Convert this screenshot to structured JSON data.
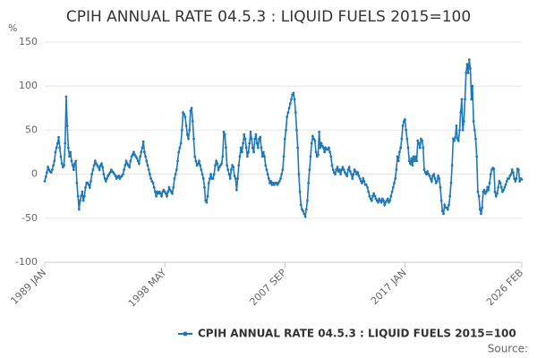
{
  "chart_data": {
    "type": "line",
    "title": "CPIH ANNUAL RATE 04.5.3 : LIQUID FUELS 2015=100",
    "y_label": "%",
    "source": "Source:",
    "categories": [
      "1989 JAN",
      null,
      null,
      null,
      null,
      null,
      null,
      null,
      null,
      null,
      null,
      null,
      null,
      null,
      null,
      null,
      null,
      null,
      null,
      null,
      null,
      null,
      null,
      null,
      null,
      null,
      null,
      null,
      null,
      null,
      null,
      null,
      null,
      null,
      null,
      null,
      null,
      null,
      null,
      null,
      null,
      null,
      null,
      null,
      null,
      null,
      null,
      null,
      null,
      null,
      null,
      null,
      null,
      null,
      null,
      null,
      null,
      null,
      null,
      null,
      null,
      null,
      null,
      null,
      null,
      null,
      null,
      null,
      null,
      null,
      null,
      null,
      null,
      null,
      null,
      null,
      null,
      null,
      null,
      null,
      null,
      null,
      null,
      null,
      null,
      null,
      null,
      null,
      null,
      null,
      null,
      null,
      null,
      null,
      null,
      null,
      null,
      null,
      null,
      null,
      null,
      null,
      null,
      null,
      null,
      null,
      null,
      null,
      null,
      null,
      null,
      null,
      "1998 MAY",
      null,
      null,
      null,
      null,
      null,
      null,
      null,
      null,
      null,
      null,
      null,
      null,
      null,
      null,
      null,
      null,
      null,
      null,
      null,
      null,
      null,
      null,
      null,
      null,
      null,
      null,
      null,
      null,
      null,
      null,
      null,
      null,
      null,
      null,
      null,
      null,
      null,
      null,
      null,
      null,
      null,
      null,
      null,
      null,
      null,
      null,
      null,
      null,
      null,
      null,
      null,
      null,
      null,
      null,
      null,
      null,
      null,
      null,
      null,
      null,
      null,
      null,
      null,
      null,
      null,
      null,
      null,
      null,
      null,
      null,
      null,
      null,
      null,
      null,
      null,
      null,
      null,
      null,
      null,
      null,
      null,
      null,
      null,
      null,
      null,
      null,
      null,
      null,
      null,
      null,
      null,
      null,
      null,
      null,
      null,
      null,
      null,
      null,
      null,
      null,
      null,
      null,
      null,
      null,
      null,
      null,
      null,
      null,
      null,
      null,
      null,
      "2007 SEP",
      null,
      null,
      null,
      null,
      null,
      null,
      null,
      null,
      null,
      null,
      null,
      null,
      null,
      null,
      null,
      null,
      null,
      null,
      null,
      null,
      null,
      null,
      null,
      null,
      null,
      null,
      null,
      null,
      null,
      null,
      null,
      null,
      null,
      null,
      null,
      null,
      null,
      null,
      null,
      null,
      null,
      null,
      null,
      null,
      null,
      null,
      null,
      null,
      null,
      null,
      null,
      null,
      null,
      null,
      null,
      null,
      null,
      null,
      null,
      null,
      null,
      null,
      null,
      null,
      null,
      null,
      null,
      null,
      null,
      null,
      null,
      null,
      null,
      null,
      null,
      null,
      null,
      null,
      null,
      null,
      null,
      null,
      null,
      null,
      null,
      null,
      null,
      null,
      null,
      null,
      null,
      null,
      null,
      null,
      null,
      null,
      null,
      null,
      null,
      null,
      null,
      null,
      null,
      null,
      null,
      null,
      null,
      null,
      null,
      null,
      null,
      "2017 JAN",
      null,
      null,
      null,
      null,
      null,
      null,
      null,
      null,
      null,
      null,
      null,
      null,
      null,
      null,
      null,
      null,
      null,
      null,
      null,
      null,
      null,
      null,
      null,
      null,
      null,
      null,
      null,
      null,
      null,
      null,
      null,
      null,
      null,
      null,
      null,
      null,
      null,
      null,
      null,
      null,
      null,
      null,
      null,
      null,
      null,
      null,
      null,
      null,
      null,
      null,
      null,
      null,
      null,
      null,
      null,
      null,
      null,
      null,
      null,
      null,
      null,
      null,
      null,
      null,
      null,
      null,
      null,
      null,
      null,
      null,
      null,
      null,
      null,
      null,
      null,
      null,
      null,
      null,
      null,
      null,
      null,
      null,
      null,
      null,
      null,
      null,
      null,
      null,
      null,
      null,
      null,
      null,
      null,
      null,
      null,
      null,
      null,
      null,
      null,
      null,
      null,
      null,
      null,
      null,
      null,
      null,
      null,
      null,
      "2026 FEB"
    ],
    "series": [
      {
        "name": "CPIH ANNUAL RATE 04.5.3 : LIQUID FUELS 2015=100",
        "color": "#1f78b8",
        "values": [
          -8,
          -3,
          2,
          8,
          5,
          3,
          2,
          5,
          10,
          15,
          25,
          30,
          35,
          42,
          30,
          20,
          12,
          8,
          10,
          35,
          88,
          55,
          30,
          20,
          25,
          15,
          10,
          5,
          12,
          15,
          -10,
          -25,
          -40,
          -30,
          -25,
          -20,
          -30,
          -25,
          -15,
          -10,
          -10,
          -12,
          -15,
          -8,
          0,
          5,
          10,
          15,
          12,
          10,
          8,
          5,
          10,
          12,
          8,
          0,
          -5,
          -8,
          -5,
          -2,
          0,
          2,
          5,
          3,
          2,
          0,
          -2,
          -5,
          -3,
          -2,
          -5,
          -3,
          -2,
          0,
          5,
          10,
          15,
          12,
          10,
          8,
          15,
          20,
          22,
          25,
          22,
          20,
          18,
          15,
          12,
          20,
          25,
          30,
          37,
          25,
          20,
          15,
          10,
          5,
          0,
          -5,
          -8,
          -10,
          -15,
          -20,
          -25,
          -20,
          -22,
          -20,
          -22,
          -25,
          -20,
          -18,
          -20,
          -22,
          -25,
          -20,
          -15,
          -18,
          -20,
          -22,
          -15,
          -5,
          0,
          5,
          15,
          25,
          30,
          35,
          50,
          70,
          68,
          65,
          55,
          45,
          40,
          50,
          72,
          75,
          60,
          40,
          20,
          15,
          10,
          12,
          15,
          10,
          5,
          0,
          -5,
          -15,
          -30,
          -32,
          -25,
          -10,
          -5,
          0,
          -5,
          -5,
          0,
          10,
          15,
          12,
          5,
          8,
          10,
          12,
          20,
          48,
          45,
          30,
          10,
          5,
          0,
          -5,
          5,
          10,
          8,
          -2,
          -5,
          -18,
          -5,
          10,
          20,
          30,
          25,
          35,
          45,
          40,
          30,
          20,
          25,
          35,
          48,
          40,
          30,
          25,
          40,
          45,
          35,
          30,
          40,
          42,
          30,
          20,
          25,
          20,
          10,
          5,
          0,
          -5,
          -10,
          -8,
          -12,
          -10,
          -12,
          -10,
          -10,
          -12,
          -10,
          -8,
          -5,
          0,
          5,
          20,
          40,
          50,
          65,
          70,
          75,
          80,
          85,
          90,
          92,
          85,
          70,
          50,
          30,
          0,
          -20,
          -35,
          -40,
          -42,
          -45,
          -48,
          -40,
          -30,
          -10,
          5,
          20,
          35,
          43,
          40,
          38,
          25,
          20,
          22,
          48,
          30,
          35,
          32,
          30,
          25,
          30,
          28,
          28,
          30,
          25,
          20,
          10,
          5,
          2,
          0,
          5,
          8,
          3,
          5,
          0,
          5,
          8,
          5,
          2,
          0,
          -2,
          5,
          8,
          3,
          0,
          -5,
          0,
          5,
          3,
          0,
          2,
          -2,
          -5,
          -8,
          -10,
          -5,
          -8,
          -12,
          -12,
          -15,
          -20,
          -25,
          -28,
          -30,
          -25,
          -22,
          -25,
          -28,
          -30,
          -32,
          -28,
          -30,
          -32,
          -28,
          -30,
          -35,
          -32,
          -30,
          -28,
          -32,
          -30,
          -25,
          -20,
          -15,
          -10,
          -5,
          5,
          20,
          15,
          25,
          30,
          40,
          55,
          60,
          62,
          50,
          40,
          30,
          15,
          12,
          18,
          10,
          20,
          15,
          20,
          15,
          38,
          35,
          30,
          40,
          38,
          30,
          5,
          2,
          0,
          3,
          0,
          -2,
          -5,
          -8,
          -2,
          0,
          -5,
          -10,
          -8,
          -2,
          -5,
          -15,
          -30,
          -42,
          -45,
          -35,
          -38,
          -38,
          -40,
          -35,
          -25,
          -10,
          10,
          40,
          38,
          42,
          55,
          40,
          38,
          50,
          70,
          85,
          50,
          60,
          85,
          115,
          125,
          115,
          130,
          120,
          85,
          100,
          60,
          50,
          40,
          20,
          -20,
          -25,
          -40,
          -45,
          -38,
          -20,
          -18,
          -22,
          -20,
          -15,
          -18,
          -10,
          0,
          5,
          7,
          6,
          -20,
          -25,
          -22,
          -15,
          -8,
          -10,
          -15,
          -20,
          -18,
          -15,
          -12,
          -8,
          -5,
          -5,
          -2,
          0,
          5,
          2,
          -5,
          -8,
          -5,
          6,
          5,
          -8,
          -5,
          -6
        ]
      }
    ],
    "ylim": [
      -100,
      150
    ],
    "yticks": [
      -100,
      -50,
      0,
      50,
      100,
      150
    ],
    "grid": true
  }
}
